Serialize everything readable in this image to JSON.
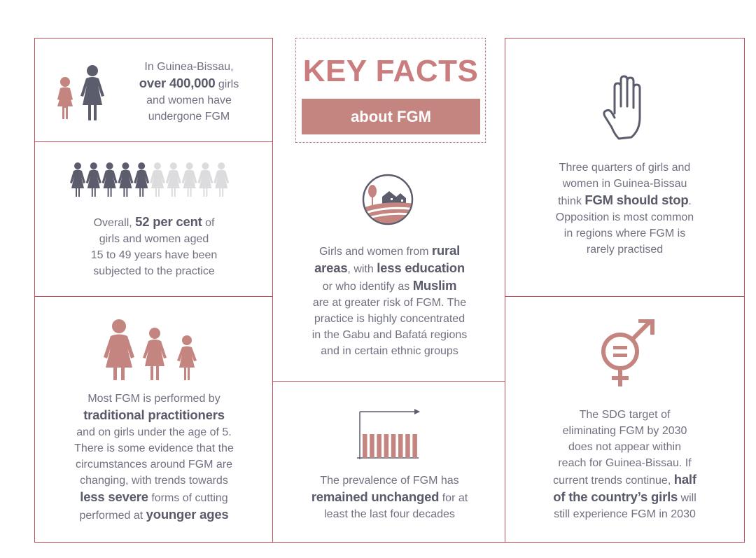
{
  "header": {
    "title": "KEY FACTS",
    "subtitle": "about FGM"
  },
  "panel1": {
    "l1": "In Guinea-Bissau,",
    "b1": "over 400,000",
    "t1": " girls",
    "l2": "and women have",
    "l3": "undergone FGM"
  },
  "panel2": {
    "t0": "Overall, ",
    "b1": "52 per cent",
    "t1": " of",
    "l2": "girls and women aged",
    "l3": "15 to 49 years have been",
    "l4": "subjected to the practice"
  },
  "panel3": {
    "l1": "Most FGM is performed by",
    "b1": "traditional practitioners",
    "l2": "and on girls under the age of 5.",
    "l3": "There is some evidence that the",
    "l4": "circumstances around FGM are",
    "l5": "changing, with trends towards",
    "b2": "less severe",
    "t2": " forms of cutting",
    "t3": "performed at ",
    "b3": "younger ages"
  },
  "panel4": {
    "l1": "Girls and women from ",
    "b1": "rural",
    "b2": "areas",
    "t2": ", with ",
    "b3": "less education",
    "t3": "or who identify as ",
    "b4": "Muslim",
    "l4": "are at greater risk of FGM. The",
    "l5": "practice is highly concentrated",
    "l6": "in the Gabu and Bafatá regions",
    "l7": "and in certain ethnic groups"
  },
  "panel5": {
    "l1": "The prevalence of FGM has",
    "b1": "remained unchanged",
    "t1": " for at",
    "l3": "least the last four decades"
  },
  "panel6": {
    "l1": "Three quarters of girls and",
    "l2": "women in Guinea-Bissau",
    "t3": "think ",
    "b1": "FGM should stop",
    "t3b": ".",
    "l4": "Opposition is most common",
    "l5": "in regions where FGM is",
    "l6": "rarely practised"
  },
  "panel7": {
    "l1": "The SDG target of",
    "l2": "eliminating FGM by 2030",
    "l3": "does not appear within",
    "l4": "reach for Guinea-Bissau. If",
    "t5": "current trends continue, ",
    "b1": "half",
    "b2": "of the country’s girls",
    "t6": " will",
    "l7": "still experience FGM in 2030"
  },
  "colors": {
    "accent": "#c4847f",
    "dark": "#5b5d6c",
    "light": "#dcdcde",
    "border": "#c0505a"
  },
  "icons": [
    "woman-and-girl-icon",
    "ten-women-icon",
    "three-figures-icon",
    "village-icon",
    "bar-trend-icon",
    "raised-hand-icon",
    "gender-equality-icon"
  ]
}
